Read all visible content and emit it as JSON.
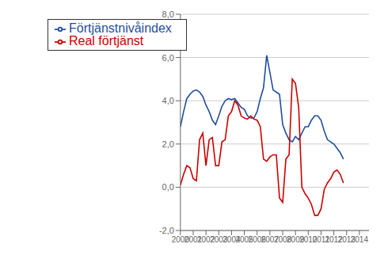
{
  "chart_data": {
    "type": "line",
    "x": [
      2000,
      2000.25,
      2000.5,
      2000.75,
      2001,
      2001.25,
      2001.5,
      2001.75,
      2002,
      2002.25,
      2002.5,
      2002.75,
      2003,
      2003.25,
      2003.5,
      2003.75,
      2004,
      2004.25,
      2004.5,
      2004.75,
      2005,
      2005.25,
      2005.5,
      2005.75,
      2006,
      2006.25,
      2006.5,
      2006.75,
      2007,
      2007.25,
      2007.5,
      2007.75,
      2008,
      2008.25,
      2008.5,
      2008.75,
      2009,
      2009.25,
      2009.5,
      2009.75,
      2010,
      2010.25,
      2010.5,
      2010.75,
      2011,
      2011.25,
      2011.5,
      2011.75,
      2012,
      2012.25,
      2012.5,
      2012.75
    ],
    "xlim": [
      2000,
      2014.75
    ],
    "xticks": [
      2000,
      2001,
      2002,
      2003,
      2004,
      2005,
      2006,
      2007,
      2008,
      2009,
      2010,
      2011,
      2012,
      2013,
      2014
    ],
    "ylim": [
      -2.0,
      8.0
    ],
    "yticks": [
      {
        "value": -2.0,
        "label": "-2,0"
      },
      {
        "value": 0.0,
        "label": "0,0"
      },
      {
        "value": 2.0,
        "label": "2,0"
      },
      {
        "value": 4.0,
        "label": "4,0"
      },
      {
        "value": 6.0,
        "label": "6,0"
      },
      {
        "value": 8.0,
        "label": "8,0"
      }
    ],
    "grid": "y",
    "legend": "upper left",
    "series": [
      {
        "name": "Förtjänstnivåindex",
        "color": "#1f4e9f",
        "values": [
          2.8,
          3.5,
          4.1,
          4.3,
          4.45,
          4.5,
          4.4,
          4.2,
          3.8,
          3.5,
          3.1,
          2.9,
          3.3,
          3.75,
          4.0,
          4.1,
          4.05,
          4.1,
          3.9,
          3.7,
          3.6,
          3.3,
          3.2,
          3.2,
          3.5,
          4.1,
          4.6,
          6.1,
          5.3,
          4.5,
          4.4,
          4.3,
          2.9,
          2.5,
          2.2,
          2.1,
          2.35,
          2.2,
          2.5,
          2.8,
          2.8,
          3.1,
          3.3,
          3.3,
          3.1,
          2.6,
          2.2,
          2.1,
          2.0,
          1.8,
          1.6,
          1.3
        ]
      },
      {
        "name": "Real förtjänst",
        "color": "#cc0000",
        "values": [
          0.1,
          0.6,
          1.0,
          0.9,
          0.4,
          0.3,
          2.2,
          2.5,
          1.0,
          2.2,
          2.3,
          1.0,
          1.0,
          2.1,
          2.2,
          3.3,
          3.5,
          4.0,
          3.8,
          3.3,
          3.2,
          3.15,
          3.3,
          3.15,
          3.1,
          2.8,
          1.3,
          1.2,
          1.4,
          1.5,
          1.5,
          -0.5,
          -0.7,
          1.3,
          1.5,
          5.0,
          4.8,
          3.7,
          0.0,
          -0.3,
          -0.5,
          -0.8,
          -1.3,
          -1.3,
          -1.0,
          -0.1,
          0.2,
          0.4,
          0.7,
          0.8,
          0.6,
          0.2
        ]
      }
    ]
  }
}
